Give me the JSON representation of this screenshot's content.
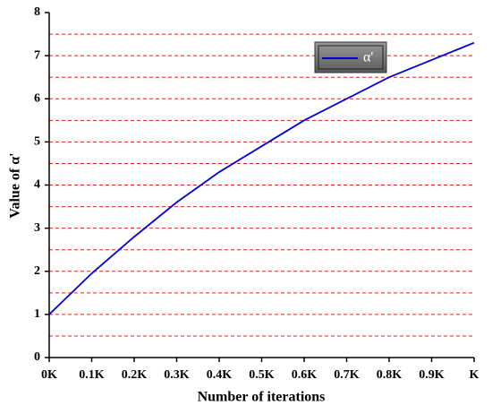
{
  "chart_data": {
    "type": "line",
    "x_label": "Number of iterations",
    "y_label": "Value of α'",
    "x": [
      0,
      0.1,
      0.2,
      0.3,
      0.4,
      0.5,
      0.6,
      0.7,
      0.8,
      0.9,
      1
    ],
    "series": [
      {
        "name": "α'",
        "color": "#0000dd",
        "values": [
          1.0,
          1.95,
          2.8,
          3.6,
          4.3,
          4.9,
          5.5,
          6.0,
          6.5,
          6.9,
          7.3
        ]
      }
    ],
    "xlim": [
      0,
      1
    ],
    "xticks": [
      {
        "value": 0,
        "label": "0K"
      },
      {
        "value": 0.1,
        "label": "0.1K"
      },
      {
        "value": 0.2,
        "label": "0.2K"
      },
      {
        "value": 0.3,
        "label": "0.3K"
      },
      {
        "value": 0.4,
        "label": "0.4K"
      },
      {
        "value": 0.5,
        "label": "0.5K"
      },
      {
        "value": 0.6,
        "label": "0.6K"
      },
      {
        "value": 0.7,
        "label": "0.7K"
      },
      {
        "value": 0.8,
        "label": "0.8K"
      },
      {
        "value": 0.9,
        "label": "0.9K"
      },
      {
        "value": 1,
        "label": "K"
      }
    ],
    "ylim": [
      0,
      8
    ],
    "yticks": [
      0,
      1,
      2,
      3,
      4,
      5,
      6,
      7,
      8
    ],
    "ygrid": [
      0.5,
      1,
      1.5,
      2,
      2.5,
      3,
      3.5,
      4,
      4.5,
      5,
      5.5,
      6,
      6.5,
      7,
      7.5
    ],
    "grid_color": "#e02020",
    "legend": "upper right"
  }
}
